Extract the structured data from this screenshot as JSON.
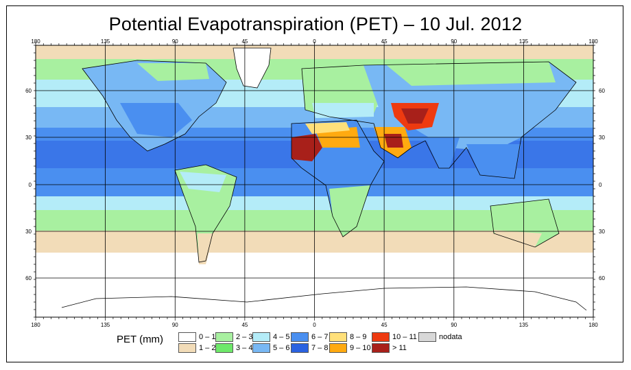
{
  "title": "Potential Evapotranspiration (PET) – 10 Jul. 2012",
  "axes": {
    "lon_labels": [
      "180",
      "135",
      "90",
      "45",
      "0",
      "45",
      "90",
      "135",
      "180"
    ],
    "lat_labels_left": [
      "60",
      "30",
      "0",
      "30",
      "60"
    ],
    "lat_labels_right": [
      "60",
      "30",
      "0",
      "30",
      "60"
    ]
  },
  "legend": {
    "title": "PET (mm)",
    "items": [
      {
        "label": "0 – 1",
        "color": "#ffffff"
      },
      {
        "label": "1 – 2",
        "color": "#f2dcb8"
      },
      {
        "label": "2 – 3",
        "color": "#a8f0a0"
      },
      {
        "label": "3 – 4",
        "color": "#6ee86a"
      },
      {
        "label": "4 – 5",
        "color": "#b4ecf8"
      },
      {
        "label": "5 – 6",
        "color": "#78b8f4"
      },
      {
        "label": "6 – 7",
        "color": "#4a8ff0"
      },
      {
        "label": "7 – 8",
        "color": "#2a62e0"
      },
      {
        "label": "8 – 9",
        "color": "#ffe07a"
      },
      {
        "label": "9 – 10",
        "color": "#ffaa10"
      },
      {
        "label": "10 – 11",
        "color": "#ee3a10"
      },
      {
        "label": "> 11",
        "color": "#a8201a"
      },
      {
        "label": "nodata",
        "color": "#d8d8d8"
      }
    ]
  }
}
